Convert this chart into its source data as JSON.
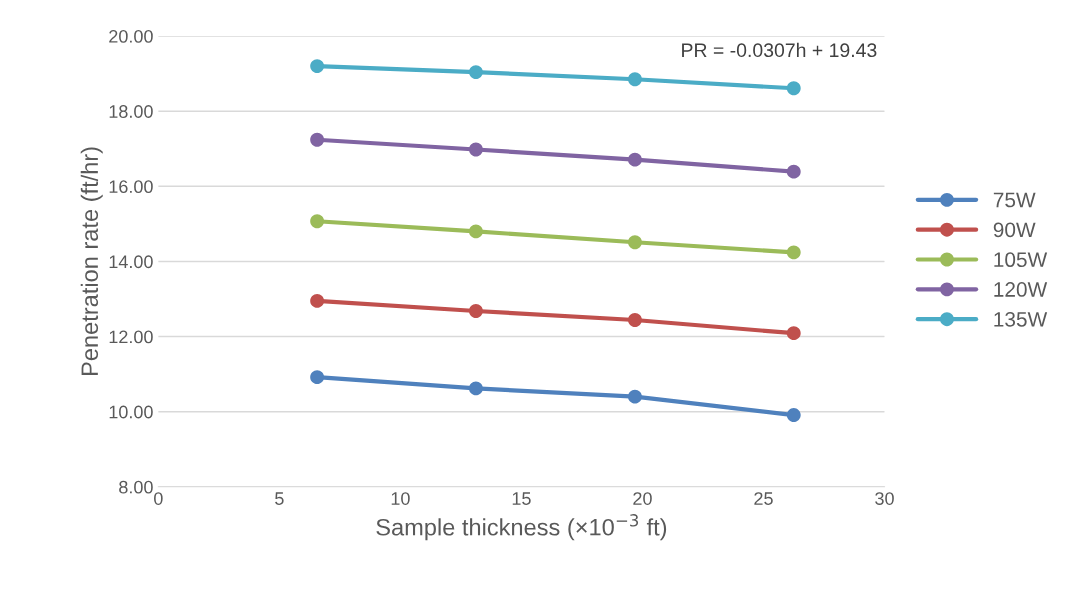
{
  "chart_data": {
    "type": "line",
    "xlabel": "Sample thickness (×10$^{−3}$ ft)",
    "ylabel": "Penetration rate (ft/hr)",
    "x": [
      6.56,
      13.12,
      19.69,
      26.25
    ],
    "series": [
      {
        "name": "75W",
        "color": "#4f81bd",
        "values": [
          10.92,
          10.62,
          10.4,
          9.91
        ]
      },
      {
        "name": "90W",
        "color": "#c0504d",
        "values": [
          12.95,
          12.68,
          12.44,
          12.09
        ]
      },
      {
        "name": "105W",
        "color": "#9bbb59",
        "values": [
          15.07,
          14.8,
          14.51,
          14.24
        ]
      },
      {
        "name": "120W",
        "color": "#8064a2",
        "values": [
          17.24,
          16.98,
          16.71,
          16.39
        ]
      },
      {
        "name": "135W",
        "color": "#4bacc6",
        "values": [
          19.2,
          19.04,
          18.85,
          18.61
        ]
      }
    ],
    "xlim": [
      0,
      30
    ],
    "xticks": [
      0,
      5,
      10,
      15,
      20,
      25,
      30
    ],
    "ylim": [
      8,
      20
    ],
    "yticks": [
      {
        "value": 8,
        "label": "8.00"
      },
      {
        "value": 10,
        "label": "10.00"
      },
      {
        "value": 12,
        "label": "12.00"
      },
      {
        "value": 14,
        "label": "14.00"
      },
      {
        "value": 16,
        "label": "16.00"
      },
      {
        "value": 18,
        "label": "18.00"
      },
      {
        "value": 20,
        "label": "20.00"
      }
    ],
    "annotations": [
      "PR = -0.0307h + 19.43"
    ],
    "grid": "y",
    "legend": "right",
    "marker": "circle",
    "line_style": "solid"
  }
}
